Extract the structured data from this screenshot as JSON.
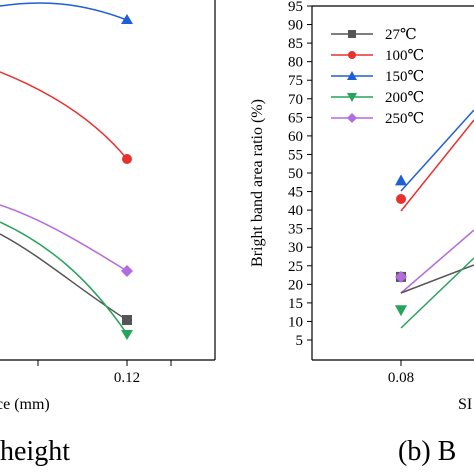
{
  "chart_data": [
    {
      "type": "line",
      "title": "",
      "xlabel": "ce (mm)",
      "ylabel": "",
      "x_tick_labels": [
        "0.12"
      ],
      "caption": "height",
      "series": [
        {
          "color": "#000000",
          "marker": "square",
          "points": [
            [
              0.12,
              0
            ]
          ]
        },
        {
          "color": "#e8312f",
          "marker": "circle",
          "points": [
            [
              0.12,
              0
            ]
          ]
        },
        {
          "color": "#1f5fd6",
          "marker": "triangle-up",
          "points": [
            [
              0.12,
              0
            ]
          ]
        },
        {
          "color": "#27a35a",
          "marker": "triangle-down",
          "points": [
            [
              0.12,
              0
            ]
          ]
        },
        {
          "color": "#b36be0",
          "marker": "diamond",
          "points": [
            [
              0.12,
              0
            ]
          ]
        }
      ]
    },
    {
      "type": "line",
      "title": "",
      "xlabel": "SI",
      "ylabel": "Bright band area ratio (%)",
      "ylim": [
        5,
        95
      ],
      "y_ticks": [
        5,
        10,
        15,
        20,
        25,
        30,
        35,
        40,
        45,
        50,
        55,
        60,
        65,
        70,
        75,
        80,
        85,
        90,
        95
      ],
      "x_tick_labels": [
        "0.08"
      ],
      "caption": "(b) B",
      "legend_position": "top-left",
      "series": [
        {
          "name": "27℃",
          "color": "#555555",
          "marker": "square",
          "points": [
            [
              0.08,
              22
            ]
          ]
        },
        {
          "name": "100℃",
          "color": "#e8312f",
          "marker": "circle",
          "points": [
            [
              0.08,
              43
            ]
          ]
        },
        {
          "name": "150℃",
          "color": "#1f5fd6",
          "marker": "triangle-up",
          "points": [
            [
              0.08,
              48
            ]
          ]
        },
        {
          "name": "200℃",
          "color": "#27a35a",
          "marker": "triangle-down",
          "points": [
            [
              0.08,
              13
            ]
          ]
        },
        {
          "name": "250℃",
          "color": "#b36be0",
          "marker": "diamond",
          "points": [
            [
              0.08,
              22
            ]
          ]
        }
      ]
    }
  ]
}
